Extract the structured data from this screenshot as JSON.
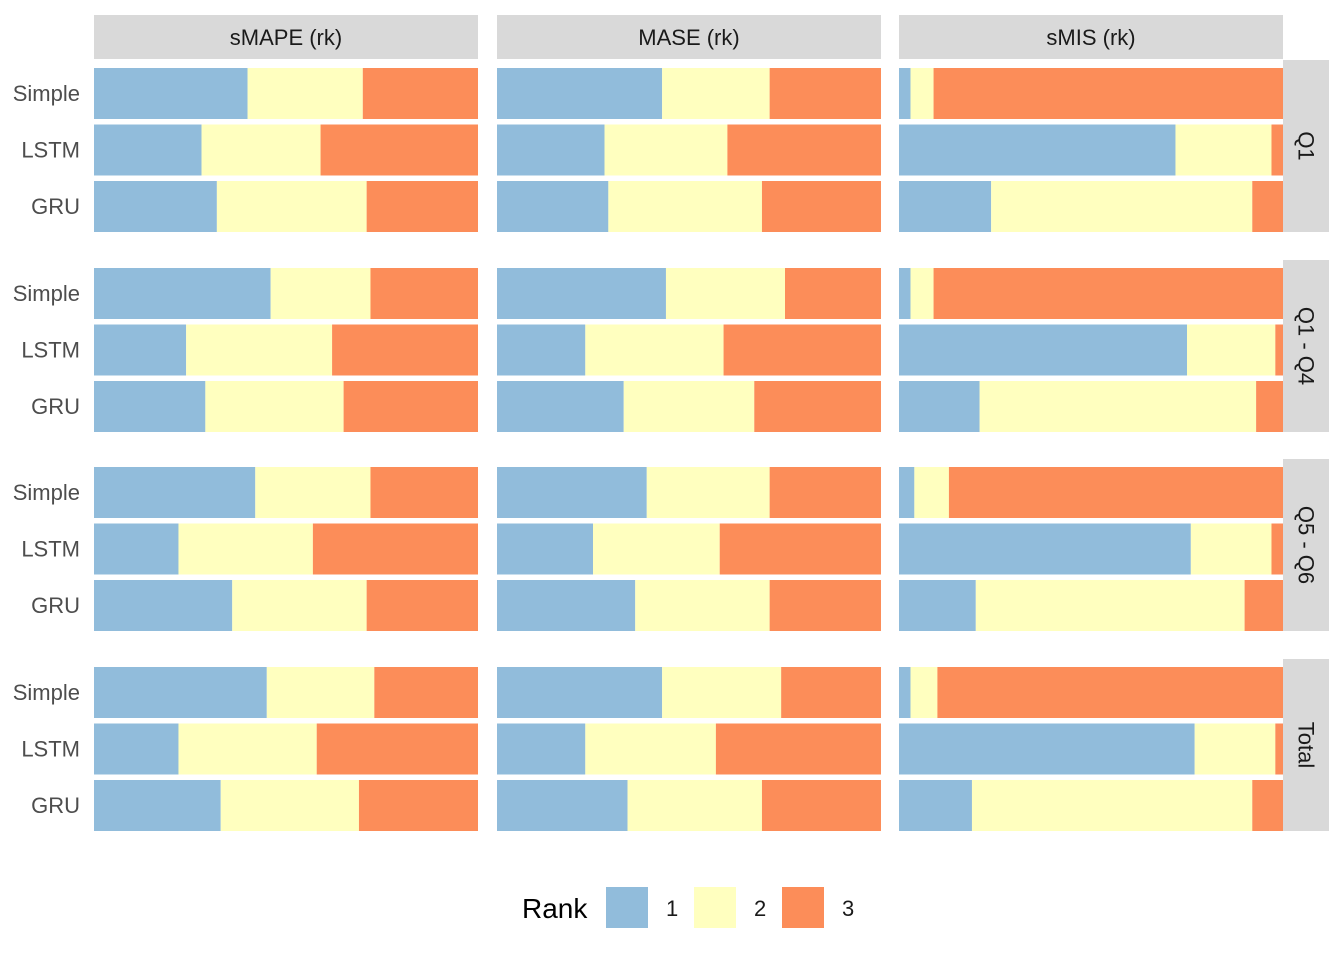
{
  "chart_data": {
    "type": "bar",
    "orientation": "horizontal",
    "stacked": "proportion",
    "xlim": [
      0,
      1
    ],
    "grid": false,
    "legend_position": "bottom",
    "columns": [
      "sMAPE (rk)",
      "MASE (rk)",
      "sMIS (rk)"
    ],
    "rows": [
      "Q1",
      "Q1 - Q4",
      "Q5 - Q6",
      "Total"
    ],
    "categories": [
      "Simple",
      "LSTM",
      "GRU"
    ],
    "legend": {
      "title": "Rank",
      "labels": [
        "1",
        "2",
        "3"
      ]
    },
    "colors": [
      "#91bcdb",
      "#ffffbf",
      "#fc8d59"
    ],
    "panels": [
      {
        "row": "Q1",
        "column": "sMAPE (rk)",
        "bars": [
          {
            "category": "Simple",
            "rank_shares": [
              0.4,
              0.3,
              0.3
            ]
          },
          {
            "category": "LSTM",
            "rank_shares": [
              0.28,
              0.31,
              0.41
            ]
          },
          {
            "category": "GRU",
            "rank_shares": [
              0.32,
              0.39,
              0.29
            ]
          }
        ]
      },
      {
        "row": "Q1",
        "column": "MASE (rk)",
        "bars": [
          {
            "category": "Simple",
            "rank_shares": [
              0.43,
              0.28,
              0.29
            ]
          },
          {
            "category": "LSTM",
            "rank_shares": [
              0.28,
              0.32,
              0.4
            ]
          },
          {
            "category": "GRU",
            "rank_shares": [
              0.29,
              0.4,
              0.31
            ]
          }
        ]
      },
      {
        "row": "Q1",
        "column": "sMIS (rk)",
        "bars": [
          {
            "category": "Simple",
            "rank_shares": [
              0.03,
              0.06,
              0.91
            ]
          },
          {
            "category": "LSTM",
            "rank_shares": [
              0.72,
              0.25,
              0.03
            ]
          },
          {
            "category": "GRU",
            "rank_shares": [
              0.24,
              0.68,
              0.08
            ]
          }
        ]
      },
      {
        "row": "Q1 - Q4",
        "column": "sMAPE (rk)",
        "bars": [
          {
            "category": "Simple",
            "rank_shares": [
              0.46,
              0.26,
              0.28
            ]
          },
          {
            "category": "LSTM",
            "rank_shares": [
              0.24,
              0.38,
              0.38
            ]
          },
          {
            "category": "GRU",
            "rank_shares": [
              0.29,
              0.36,
              0.35
            ]
          }
        ]
      },
      {
        "row": "Q1 - Q4",
        "column": "MASE (rk)",
        "bars": [
          {
            "category": "Simple",
            "rank_shares": [
              0.44,
              0.31,
              0.25
            ]
          },
          {
            "category": "LSTM",
            "rank_shares": [
              0.23,
              0.36,
              0.41
            ]
          },
          {
            "category": "GRU",
            "rank_shares": [
              0.33,
              0.34,
              0.33
            ]
          }
        ]
      },
      {
        "row": "Q1 - Q4",
        "column": "sMIS (rk)",
        "bars": [
          {
            "category": "Simple",
            "rank_shares": [
              0.03,
              0.06,
              0.91
            ]
          },
          {
            "category": "LSTM",
            "rank_shares": [
              0.75,
              0.23,
              0.02
            ]
          },
          {
            "category": "GRU",
            "rank_shares": [
              0.21,
              0.72,
              0.07
            ]
          }
        ]
      },
      {
        "row": "Q5 - Q6",
        "column": "sMAPE (rk)",
        "bars": [
          {
            "category": "Simple",
            "rank_shares": [
              0.42,
              0.3,
              0.28
            ]
          },
          {
            "category": "LSTM",
            "rank_shares": [
              0.22,
              0.35,
              0.43
            ]
          },
          {
            "category": "GRU",
            "rank_shares": [
              0.36,
              0.35,
              0.29
            ]
          }
        ]
      },
      {
        "row": "Q5 - Q6",
        "column": "MASE (rk)",
        "bars": [
          {
            "category": "Simple",
            "rank_shares": [
              0.39,
              0.32,
              0.29
            ]
          },
          {
            "category": "LSTM",
            "rank_shares": [
              0.25,
              0.33,
              0.42
            ]
          },
          {
            "category": "GRU",
            "rank_shares": [
              0.36,
              0.35,
              0.29
            ]
          }
        ]
      },
      {
        "row": "Q5 - Q6",
        "column": "sMIS (rk)",
        "bars": [
          {
            "category": "Simple",
            "rank_shares": [
              0.04,
              0.09,
              0.87
            ]
          },
          {
            "category": "LSTM",
            "rank_shares": [
              0.76,
              0.21,
              0.03
            ]
          },
          {
            "category": "GRU",
            "rank_shares": [
              0.2,
              0.7,
              0.1
            ]
          }
        ]
      },
      {
        "row": "Total",
        "column": "sMAPE (rk)",
        "bars": [
          {
            "category": "Simple",
            "rank_shares": [
              0.45,
              0.28,
              0.27
            ]
          },
          {
            "category": "LSTM",
            "rank_shares": [
              0.22,
              0.36,
              0.42
            ]
          },
          {
            "category": "GRU",
            "rank_shares": [
              0.33,
              0.36,
              0.31
            ]
          }
        ]
      },
      {
        "row": "Total",
        "column": "MASE (rk)",
        "bars": [
          {
            "category": "Simple",
            "rank_shares": [
              0.43,
              0.31,
              0.26
            ]
          },
          {
            "category": "LSTM",
            "rank_shares": [
              0.23,
              0.34,
              0.43
            ]
          },
          {
            "category": "GRU",
            "rank_shares": [
              0.34,
              0.35,
              0.31
            ]
          }
        ]
      },
      {
        "row": "Total",
        "column": "sMIS (rk)",
        "bars": [
          {
            "category": "Simple",
            "rank_shares": [
              0.03,
              0.07,
              0.9
            ]
          },
          {
            "category": "LSTM",
            "rank_shares": [
              0.77,
              0.21,
              0.02
            ]
          },
          {
            "category": "GRU",
            "rank_shares": [
              0.19,
              0.73,
              0.08
            ]
          }
        ]
      }
    ]
  }
}
